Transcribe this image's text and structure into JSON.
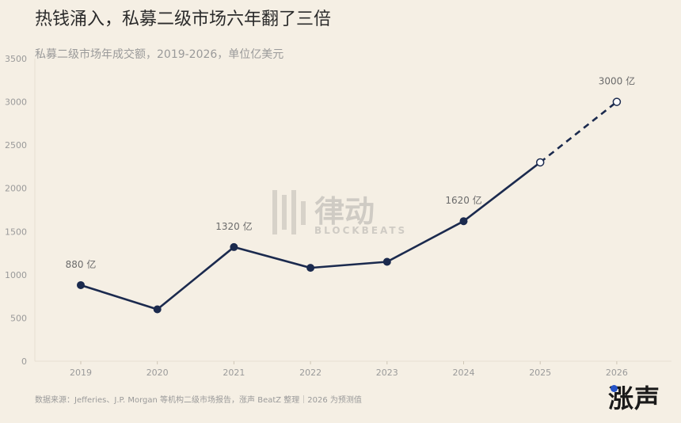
{
  "title": "热钱涌入，私募二级市场六年翻了三倍",
  "subtitle": "私募二级市场年成交额，2019-2026，单位亿美元",
  "source": "数据来源：Jefferies、J.P. Morgan 等机构二级市场报告，涨声 BeatZ 整理｜2026 为预测值",
  "brand": "涨声",
  "watermark": {
    "text": "律动",
    "sub": "BLOCKBEATS"
  },
  "colors": {
    "line": "#1b2a4e",
    "background": "#f5efe4",
    "axis_text": "#9a9a9a",
    "label_text": "#6b6b6b",
    "brand_dot": "#2553c7"
  },
  "chart_data": {
    "type": "line",
    "x": [
      "2019",
      "2020",
      "2021",
      "2022",
      "2023",
      "2024",
      "2025",
      "2026"
    ],
    "values": [
      880,
      600,
      1320,
      1080,
      1150,
      1620,
      2300,
      3000
    ],
    "projected_from_index": 6,
    "ylim": [
      0,
      3500
    ],
    "yticks": [
      0,
      500,
      1000,
      1500,
      2000,
      2500,
      3000,
      3500
    ],
    "annotations": [
      {
        "index": 0,
        "text": "880 亿"
      },
      {
        "index": 2,
        "text": "1320 亿"
      },
      {
        "index": 5,
        "text": "1620 亿"
      },
      {
        "index": 7,
        "text": "3000 亿"
      }
    ],
    "grid": false,
    "legend": "none"
  }
}
